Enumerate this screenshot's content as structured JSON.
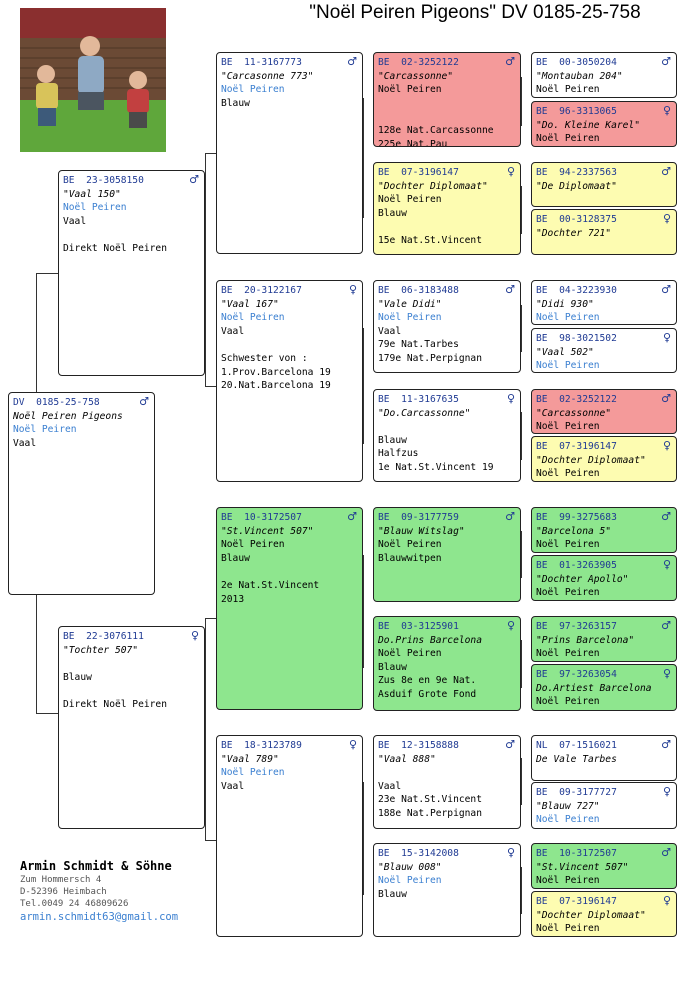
{
  "title": "\"Noël Peiren Pigeons\"  DV  0185-25-758",
  "colors": {
    "red": "#f49a9a",
    "yellow": "#fdfcb1",
    "green": "#8ee68e",
    "ring_blue": "#1f3a93",
    "owner_blue": "#3a7fd0"
  },
  "subject": {
    "ring": "DV  0185-25-758",
    "sex": "♂",
    "lines": [
      {
        "t": "Noël Peiren Pigeons",
        "s": "name"
      },
      {
        "t": "Noël Peiren",
        "s": "blue"
      },
      {
        "t": "Vaal"
      }
    ]
  },
  "sire": {
    "ring": "BE  23-3058150",
    "sex": "♂",
    "lines": [
      {
        "t": "\"Vaal 150\"",
        "s": "name"
      },
      {
        "t": "Noël Peiren",
        "s": "blue"
      },
      {
        "t": "Vaal"
      },
      {
        "t": ""
      },
      {
        "t": "Direkt Noël Peiren"
      }
    ]
  },
  "dam": {
    "ring": "BE  22-3076111",
    "sex": "♀",
    "lines": [
      {
        "t": "\"Tochter 507\"",
        "s": "name"
      },
      {
        "t": ""
      },
      {
        "t": "Blauw"
      },
      {
        "t": ""
      },
      {
        "t": "Direkt Noël Peiren"
      }
    ]
  },
  "g1": {
    "ring": "BE  11-3167773",
    "sex": "♂",
    "lines": [
      {
        "t": "\"Carcasonne 773\"",
        "s": "name"
      },
      {
        "t": "Noël Peiren",
        "s": "blue"
      },
      {
        "t": "Blauw"
      }
    ]
  },
  "g2": {
    "ring": "BE  20-3122167",
    "sex": "♀",
    "lines": [
      {
        "t": "\"Vaal 167\"",
        "s": "name"
      },
      {
        "t": "Noël Peiren",
        "s": "blue"
      },
      {
        "t": "Vaal"
      },
      {
        "t": ""
      },
      {
        "t": "Schwester von :"
      },
      {
        "t": "1.Prov.Barcelona 19"
      },
      {
        "t": "20.Nat.Barcelona 19"
      }
    ]
  },
  "g3": {
    "ring": "BE  10-3172507",
    "sex": "♂",
    "lines": [
      {
        "t": "\"St.Vincent 507\"",
        "s": "name"
      },
      {
        "t": "Noël Peiren"
      },
      {
        "t": "Blauw"
      },
      {
        "t": ""
      },
      {
        "t": "2e Nat.St.Vincent"
      },
      {
        "t": "2013"
      }
    ]
  },
  "g4": {
    "ring": "BE  18-3123789",
    "sex": "♀",
    "lines": [
      {
        "t": "\"Vaal 789\"",
        "s": "name"
      },
      {
        "t": "Noël Peiren",
        "s": "blue"
      },
      {
        "t": "Vaal"
      }
    ]
  },
  "gg1": {
    "ring": "BE  02-3252122",
    "sex": "♂",
    "lines": [
      {
        "t": "\"Carcassonne\"",
        "s": "name"
      },
      {
        "t": "Noël Peiren"
      },
      {
        "t": ""
      },
      {
        "t": ""
      },
      {
        "t": "128e Nat.Carcassonne"
      },
      {
        "t": "225e Nat.Pau"
      }
    ]
  },
  "gg2": {
    "ring": "BE  07-3196147",
    "sex": "♀",
    "lines": [
      {
        "t": "\"Dochter Diplomaat\"",
        "s": "name"
      },
      {
        "t": "Noël Peiren"
      },
      {
        "t": "Blauw"
      },
      {
        "t": ""
      },
      {
        "t": "15e Nat.St.Vincent"
      }
    ]
  },
  "gg3": {
    "ring": "BE  06-3183488",
    "sex": "♂",
    "lines": [
      {
        "t": "\"Vale Didi\"",
        "s": "name"
      },
      {
        "t": "Noël Peiren",
        "s": "blue"
      },
      {
        "t": "Vaal"
      },
      {
        "t": "79e Nat.Tarbes"
      },
      {
        "t": "179e Nat.Perpignan"
      }
    ]
  },
  "gg4": {
    "ring": "BE  11-3167635",
    "sex": "♀",
    "lines": [
      {
        "t": "\"Do.Carcassonne\"",
        "s": "name"
      },
      {
        "t": ""
      },
      {
        "t": "Blauw"
      },
      {
        "t": "Halfzus"
      },
      {
        "t": "1e Nat.St.Vincent 19"
      }
    ]
  },
  "gg5": {
    "ring": "BE  09-3177759",
    "sex": "♂",
    "lines": [
      {
        "t": "\"Blauw Witslag\"",
        "s": "name"
      },
      {
        "t": "Noël Peiren"
      },
      {
        "t": "Blauwwitpen"
      }
    ]
  },
  "gg6": {
    "ring": "BE  03-3125901",
    "sex": "♀",
    "lines": [
      {
        "t": "Do.Prins Barcelona",
        "s": "name"
      },
      {
        "t": "Noël Peiren"
      },
      {
        "t": "Blauw"
      },
      {
        "t": "Zus 8e en 9e Nat."
      },
      {
        "t": "Asduif Grote Fond"
      }
    ]
  },
  "gg7": {
    "ring": "BE  12-3158888",
    "sex": "♂",
    "lines": [
      {
        "t": "\"Vaal 888\"",
        "s": "name"
      },
      {
        "t": ""
      },
      {
        "t": "Vaal"
      },
      {
        "t": "23e Nat.St.Vincent"
      },
      {
        "t": "188e Nat.Perpignan"
      }
    ]
  },
  "gg8": {
    "ring": "BE  15-3142008",
    "sex": "♀",
    "lines": [
      {
        "t": "\"Blauw 008\"",
        "s": "name"
      },
      {
        "t": "Noël Peiren",
        "s": "blue"
      },
      {
        "t": "Blauw"
      }
    ]
  },
  "ggg1": {
    "ring": "BE  00-3050204",
    "sex": "♂",
    "lines": [
      {
        "t": "\"Montauban 204\"",
        "s": "name"
      },
      {
        "t": "Noël Peiren"
      }
    ]
  },
  "ggg2": {
    "ring": "BE  96-3313065",
    "sex": "♀",
    "lines": [
      {
        "t": "\"Do. Kleine Karel\"",
        "s": "name"
      },
      {
        "t": "Noël Peiren"
      }
    ]
  },
  "ggg3": {
    "ring": "BE  94-2337563",
    "sex": "♂",
    "lines": [
      {
        "t": "\"De Diplomaat\"",
        "s": "name"
      }
    ]
  },
  "ggg4": {
    "ring": "BE  00-3128375",
    "sex": "♀",
    "lines": [
      {
        "t": "\"Dochter 721\"",
        "s": "name"
      }
    ]
  },
  "ggg5": {
    "ring": "BE  04-3223930",
    "sex": "♂",
    "lines": [
      {
        "t": "\"Didi 930\"",
        "s": "name"
      },
      {
        "t": "Noël Peiren",
        "s": "blue"
      }
    ]
  },
  "ggg6": {
    "ring": "BE  98-3021502",
    "sex": "♀",
    "lines": [
      {
        "t": "\"Vaal 502\"",
        "s": "name"
      },
      {
        "t": "Noël Peiren",
        "s": "blue"
      }
    ]
  },
  "ggg7": {
    "ring": "BE  02-3252122",
    "sex": "♂",
    "lines": [
      {
        "t": "\"Carcassonne\"",
        "s": "name"
      },
      {
        "t": "Noël Peiren"
      }
    ]
  },
  "ggg8": {
    "ring": "BE  07-3196147",
    "sex": "♀",
    "lines": [
      {
        "t": "\"Dochter Diplomaat\"",
        "s": "name"
      },
      {
        "t": "Noël Peiren"
      }
    ]
  },
  "ggg9": {
    "ring": "BE  99-3275683",
    "sex": "♂",
    "lines": [
      {
        "t": "\"Barcelona 5\"",
        "s": "name"
      },
      {
        "t": "Noël Peiren"
      }
    ]
  },
  "ggg10": {
    "ring": "BE  01-3263905",
    "sex": "♀",
    "lines": [
      {
        "t": "\"Dochter Apollo\"",
        "s": "name"
      },
      {
        "t": "Noël Peiren"
      }
    ]
  },
  "ggg11": {
    "ring": "BE  97-3263157",
    "sex": "♂",
    "lines": [
      {
        "t": "\"Prins Barcelona\"",
        "s": "name"
      },
      {
        "t": "Noël Peiren"
      }
    ]
  },
  "ggg12": {
    "ring": "BE  97-3263054",
    "sex": "♀",
    "lines": [
      {
        "t": "Do.Artiest Barcelona",
        "s": "name"
      },
      {
        "t": "Noël Peiren"
      }
    ]
  },
  "ggg13": {
    "ring": "NL  07-1516021",
    "sex": "♂",
    "lines": [
      {
        "t": "De Vale Tarbes",
        "s": "name"
      }
    ]
  },
  "ggg14": {
    "ring": "BE  09-3177727",
    "sex": "♀",
    "lines": [
      {
        "t": "\"Blauw 727\"",
        "s": "name"
      },
      {
        "t": "Noël Peiren",
        "s": "blue"
      }
    ]
  },
  "ggg15": {
    "ring": "BE  10-3172507",
    "sex": "♂",
    "lines": [
      {
        "t": "\"St.Vincent 507\"",
        "s": "name"
      },
      {
        "t": "Noël Peiren"
      }
    ]
  },
  "ggg16": {
    "ring": "BE  07-3196147",
    "sex": "♀",
    "lines": [
      {
        "t": "\"Dochter Diplomaat\"",
        "s": "name"
      },
      {
        "t": "Noël Peiren"
      }
    ]
  },
  "owner": {
    "name": "Armin Schmidt & Söhne",
    "street": "Zum Hommersch 4",
    "city": "D-52396 Heimbach",
    "tel": "Tel.0049 24 46809626",
    "email": "armin.schmidt63@gmail.com"
  }
}
